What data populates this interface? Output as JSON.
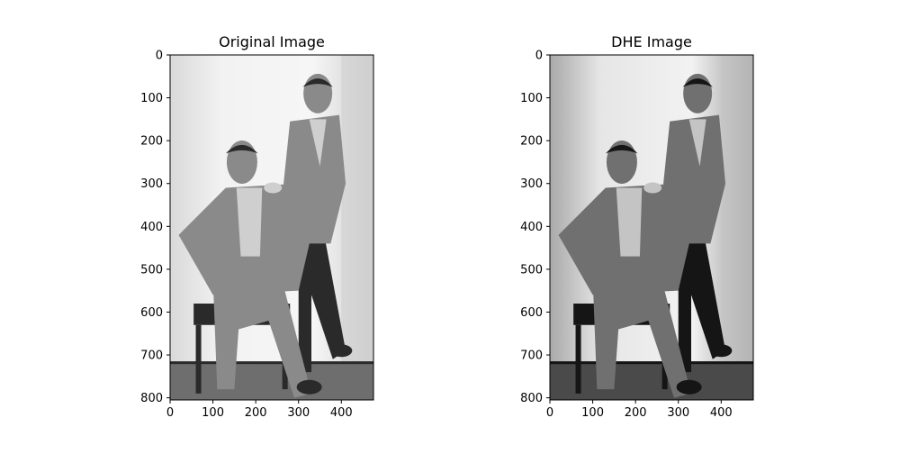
{
  "chart_data": [
    {
      "type": "image",
      "title": "Original Image",
      "xlim": [
        0,
        475
      ],
      "ylim": [
        805,
        0
      ],
      "x_ticks": [
        0,
        100,
        200,
        300,
        400
      ],
      "y_ticks": [
        0,
        100,
        200,
        300,
        400,
        500,
        600,
        700,
        800
      ],
      "grid": false,
      "image_content": "Grayscale vintage photograph of two men: one seated in a suit with legs crossed, one standing behind with a hand on his shoulder",
      "tone": "original"
    },
    {
      "type": "image",
      "title": "DHE Image",
      "xlim": [
        0,
        475
      ],
      "ylim": [
        805,
        0
      ],
      "x_ticks": [
        0,
        100,
        200,
        300,
        400
      ],
      "y_ticks": [
        0,
        100,
        200,
        300,
        400,
        500,
        600,
        700,
        800
      ],
      "grid": false,
      "image_content": "Same photograph after dynamic histogram equalization, higher contrast",
      "tone": "enhanced"
    }
  ]
}
